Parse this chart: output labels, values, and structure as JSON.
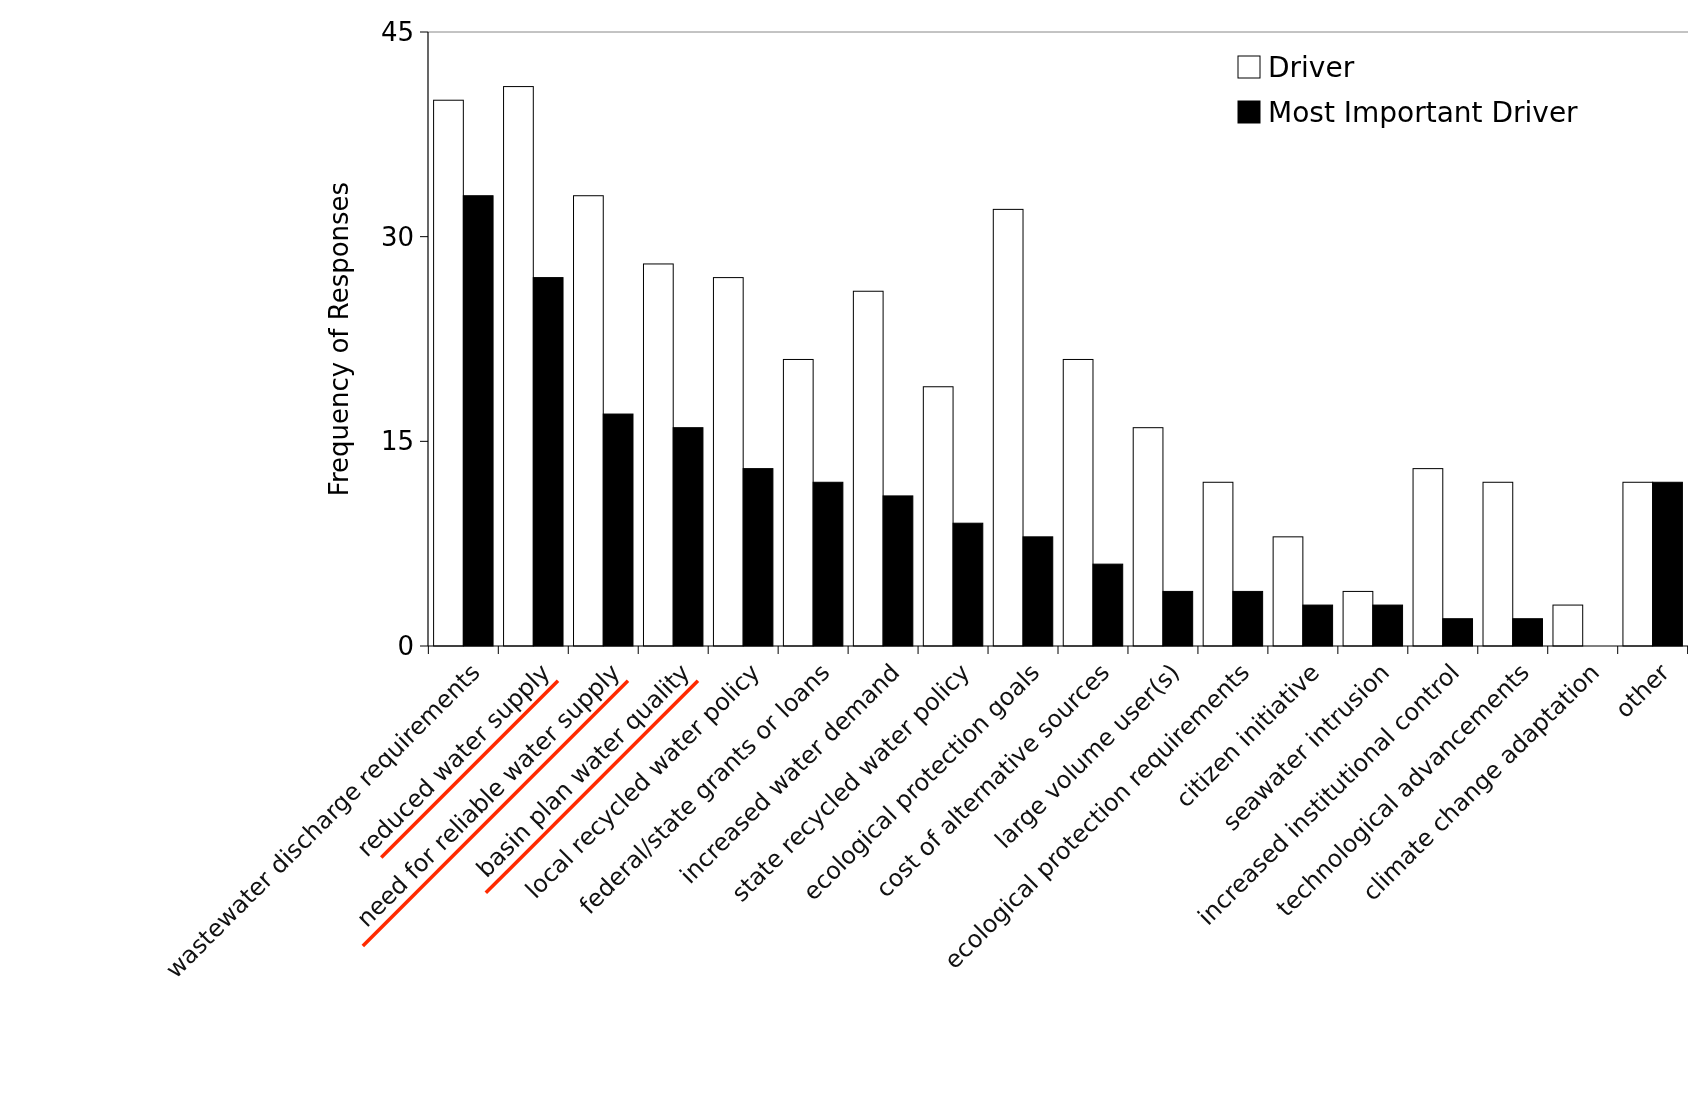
{
  "chart_data": {
    "type": "bar",
    "ylabel": "Frequency of Responses",
    "categories": [
      "wastewater discharge requirements",
      "reduced water supply",
      "need for reliable water supply",
      "basin plan water quality",
      "local recycled water policy",
      "federal/state grants or loans",
      "increased water demand",
      "state recycled water policy",
      "ecological protection goals",
      "cost of alternative sources",
      "large volume user(s)",
      "ecological protection requirements",
      "citizen initiative",
      "seawater intrusion",
      "increased institutional control",
      "technological advancements",
      "climate change adaptation",
      "other"
    ],
    "series": [
      {
        "name": "Driver",
        "color": "#ffffff",
        "values": [
          40,
          41,
          33,
          28,
          27,
          21,
          26,
          19,
          32,
          21,
          16,
          12,
          8,
          4,
          13,
          12,
          3,
          12
        ]
      },
      {
        "name": "Most Important Driver",
        "color": "#000000",
        "values": [
          33,
          27,
          17,
          16,
          13,
          12,
          11,
          9,
          8,
          6,
          4,
          4,
          3,
          3,
          2,
          2,
          0,
          12
        ]
      }
    ],
    "ylim": [
      0,
      45
    ],
    "yticks": [
      0,
      15,
      30,
      45
    ],
    "legend": "top right"
  }
}
